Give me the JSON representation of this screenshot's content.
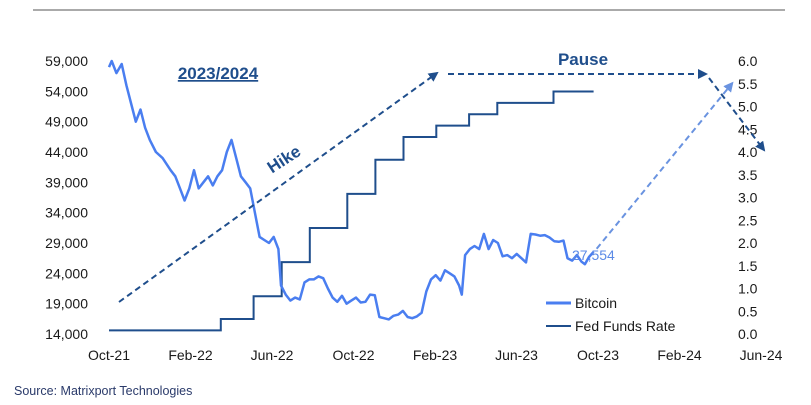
{
  "source": "Source: Matrixport Technologies",
  "colors": {
    "bitcoin": "#4a7ef0",
    "fed": "#1f4e8c",
    "arrow": "#1f4e8c",
    "projection": "#6a93e0",
    "text_dark": "#1a1a1a"
  },
  "chart_data": {
    "type": "line",
    "title": "2023/2024",
    "x_tick_labels": [
      "Oct-21",
      "Feb-22",
      "Jun-22",
      "Oct-22",
      "Feb-23",
      "Jun-23",
      "Oct-23",
      "Feb-24",
      "Jun-24"
    ],
    "y_left": {
      "ticks": [
        "14,000",
        "19,000",
        "24,000",
        "29,000",
        "34,000",
        "39,000",
        "44,000",
        "49,000",
        "54,000",
        "59,000"
      ],
      "range": [
        14000,
        59000
      ]
    },
    "y_right": {
      "ticks": [
        "0.0",
        "0.5",
        "1.0",
        "1.5",
        "2.0",
        "2.5",
        "3.0",
        "3.5",
        "4.0",
        "4.5",
        "5.0",
        "5.5",
        "6.0"
      ],
      "range": [
        0,
        6
      ]
    },
    "legend": {
      "position": "bottom-right",
      "entries": [
        "Bitcoin",
        "Fed Funds Rate"
      ]
    },
    "annotations": {
      "hike": "Hike",
      "pause": "Pause",
      "last_value": "27,554"
    },
    "series": [
      {
        "name": "Bitcoin",
        "axis": "left",
        "points": [
          [
            "2021-10-01",
            58000
          ],
          [
            "2021-10-05",
            59000
          ],
          [
            "2021-10-12",
            57000
          ],
          [
            "2021-10-20",
            58500
          ],
          [
            "2021-10-27",
            55000
          ],
          [
            "2021-11-03",
            52000
          ],
          [
            "2021-11-10",
            49000
          ],
          [
            "2021-11-17",
            51000
          ],
          [
            "2021-11-24",
            48000
          ],
          [
            "2021-12-01",
            46000
          ],
          [
            "2021-12-10",
            44000
          ],
          [
            "2021-12-20",
            43000
          ],
          [
            "2022-01-01",
            41000
          ],
          [
            "2022-01-08",
            40000
          ],
          [
            "2022-01-15",
            38000
          ],
          [
            "2022-01-22",
            36000
          ],
          [
            "2022-01-29",
            38000
          ],
          [
            "2022-02-05",
            41000
          ],
          [
            "2022-02-12",
            38000
          ],
          [
            "2022-02-19",
            39000
          ],
          [
            "2022-02-26",
            40000
          ],
          [
            "2022-03-05",
            38500
          ],
          [
            "2022-03-12",
            40000
          ],
          [
            "2022-03-19",
            41000
          ],
          [
            "2022-03-26",
            44000
          ],
          [
            "2022-04-02",
            46000
          ],
          [
            "2022-04-09",
            43000
          ],
          [
            "2022-04-16",
            40000
          ],
          [
            "2022-04-23",
            39000
          ],
          [
            "2022-04-30",
            38000
          ],
          [
            "2022-05-07",
            34000
          ],
          [
            "2022-05-14",
            30000
          ],
          [
            "2022-05-21",
            29500
          ],
          [
            "2022-05-28",
            29000
          ],
          [
            "2022-06-04",
            30000
          ],
          [
            "2022-06-11",
            28000
          ],
          [
            "2022-06-15",
            22000
          ],
          [
            "2022-06-22",
            20500
          ],
          [
            "2022-06-29",
            19500
          ],
          [
            "2022-07-06",
            20000
          ],
          [
            "2022-07-13",
            19700
          ],
          [
            "2022-07-20",
            22500
          ],
          [
            "2022-07-27",
            23000
          ],
          [
            "2022-08-03",
            23000
          ],
          [
            "2022-08-10",
            23500
          ],
          [
            "2022-08-17",
            23200
          ],
          [
            "2022-08-24",
            21500
          ],
          [
            "2022-08-31",
            20000
          ],
          [
            "2022-09-07",
            19300
          ],
          [
            "2022-09-14",
            20300
          ],
          [
            "2022-09-21",
            19000
          ],
          [
            "2022-09-28",
            19500
          ],
          [
            "2022-10-05",
            20000
          ],
          [
            "2022-10-12",
            19200
          ],
          [
            "2022-10-19",
            19300
          ],
          [
            "2022-10-26",
            20500
          ],
          [
            "2022-11-02",
            20400
          ],
          [
            "2022-11-09",
            16800
          ],
          [
            "2022-11-16",
            16600
          ],
          [
            "2022-11-23",
            16400
          ],
          [
            "2022-11-30",
            17000
          ],
          [
            "2022-12-07",
            17200
          ],
          [
            "2022-12-14",
            17800
          ],
          [
            "2022-12-21",
            16800
          ],
          [
            "2022-12-28",
            16600
          ],
          [
            "2023-01-04",
            16900
          ],
          [
            "2023-01-11",
            17500
          ],
          [
            "2023-01-18",
            21000
          ],
          [
            "2023-01-25",
            23000
          ],
          [
            "2023-02-01",
            23700
          ],
          [
            "2023-02-08",
            22800
          ],
          [
            "2023-02-15",
            24500
          ],
          [
            "2023-02-22",
            24000
          ],
          [
            "2023-03-01",
            23500
          ],
          [
            "2023-03-08",
            22000
          ],
          [
            "2023-03-12",
            20500
          ],
          [
            "2023-03-17",
            27000
          ],
          [
            "2023-03-24",
            28000
          ],
          [
            "2023-03-31",
            28500
          ],
          [
            "2023-04-07",
            28000
          ],
          [
            "2023-04-14",
            30500
          ],
          [
            "2023-04-21",
            28000
          ],
          [
            "2023-04-28",
            29500
          ],
          [
            "2023-05-05",
            29000
          ],
          [
            "2023-05-12",
            26800
          ],
          [
            "2023-05-19",
            27000
          ],
          [
            "2023-05-26",
            26500
          ],
          [
            "2023-06-02",
            27200
          ],
          [
            "2023-06-09",
            26500
          ],
          [
            "2023-06-16",
            25800
          ],
          [
            "2023-06-23",
            30500
          ],
          [
            "2023-06-30",
            30400
          ],
          [
            "2023-07-07",
            30200
          ],
          [
            "2023-07-14",
            30300
          ],
          [
            "2023-07-21",
            29900
          ],
          [
            "2023-07-28",
            29300
          ],
          [
            "2023-08-04",
            29200
          ],
          [
            "2023-08-11",
            29400
          ],
          [
            "2023-08-17",
            26500
          ],
          [
            "2023-08-24",
            26100
          ],
          [
            "2023-08-31",
            27000
          ],
          [
            "2023-09-07",
            25900
          ],
          [
            "2023-09-12",
            25500
          ],
          [
            "2023-09-18",
            26700
          ],
          [
            "2023-09-25",
            27554
          ]
        ]
      },
      {
        "name": "Fed Funds Rate",
        "axis": "right",
        "step": true,
        "points": [
          [
            "2021-10-01",
            0.08
          ],
          [
            "2022-03-17",
            0.33
          ],
          [
            "2022-05-05",
            0.83
          ],
          [
            "2022-06-16",
            1.58
          ],
          [
            "2022-07-28",
            2.33
          ],
          [
            "2022-09-22",
            3.08
          ],
          [
            "2022-11-03",
            3.83
          ],
          [
            "2022-12-15",
            4.33
          ],
          [
            "2023-02-02",
            4.58
          ],
          [
            "2023-03-23",
            4.83
          ],
          [
            "2023-05-04",
            5.08
          ],
          [
            "2023-07-27",
            5.33
          ],
          [
            "2023-09-25",
            5.33
          ]
        ]
      },
      {
        "name": "Bitcoin projection",
        "axis": "left",
        "dashed": true,
        "points": [
          [
            "2023-09-25",
            27554
          ],
          [
            "2024-05-01",
            56000
          ]
        ]
      },
      {
        "name": "Rate path",
        "axis": "right",
        "dashed": true,
        "points": [
          [
            "2021-10-01",
            0.7
          ],
          [
            "2023-03-01",
            5.6
          ],
          [
            "2023-03-01",
            5.6
          ],
          [
            "2024-05-01",
            5.6
          ],
          [
            "2024-05-01",
            5.6
          ],
          [
            "2024-06-30",
            4.0
          ]
        ]
      }
    ]
  }
}
